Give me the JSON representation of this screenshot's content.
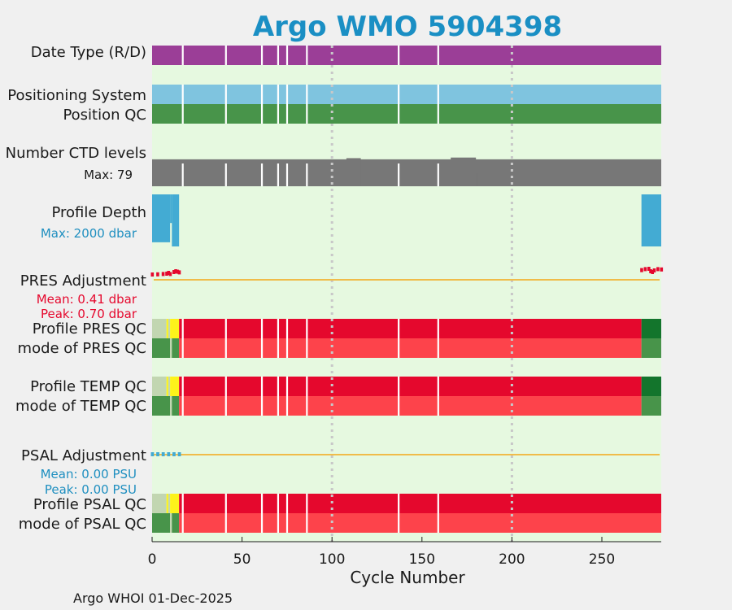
{
  "chart_data": {
    "type": "bar",
    "title": "Argo WMO 5904398",
    "xlabel": "Cycle Number",
    "xlim": [
      0,
      283
    ],
    "xticks": [
      0,
      50,
      100,
      150,
      200,
      250
    ],
    "grid_x": [
      100,
      200
    ],
    "footer": "Argo WHOI 01-Dec-2025",
    "colors": {
      "background": "#e6f9e0",
      "purple": "#9b3e97",
      "lightblue": "#7fc4df",
      "green": "#48944a",
      "gray": "#777777",
      "depth": "#43abd3",
      "red": "#e5082d",
      "lightred": "#fd434b",
      "darkgreen": "#13752c",
      "qcpale": "#c2d6b1",
      "yellow": "#fdf31b",
      "orange": "#f0bc4a",
      "pres_text": "#e5082d",
      "psal_text": "#1f8fc0"
    },
    "gaps": [
      17,
      41,
      61,
      70,
      75,
      86,
      137,
      159
    ],
    "labels": {
      "date_type": "Date Type (R/D)",
      "positioning": "Positioning System",
      "position_qc": "Position QC",
      "nlevels": "Number CTD levels",
      "nlevels_max": "Max: 79",
      "depth": "Profile Depth",
      "depth_max": "Max: 2000 dbar",
      "pres_adj": "PRES Adjustment",
      "pres_mean": "Mean: 0.41 dbar",
      "pres_peak": "Peak: 0.70 dbar",
      "pres_qc": "Profile PRES QC",
      "pres_mode": "mode of PRES QC",
      "temp_qc": "Profile TEMP QC",
      "temp_mode": "mode of TEMP QC",
      "psal_adj": "PSAL Adjustment",
      "psal_mean": "Mean: 0.00 PSU",
      "psal_peak": "Peak: 0.00 PSU",
      "psal_qc": "Profile PSAL QC",
      "psal_mode": "mode of PSAL QC"
    },
    "rows": {
      "date_type": [
        {
          "x0": 0,
          "x1": 283,
          "color": "purple"
        }
      ],
      "positioning": [
        {
          "x0": 0,
          "x1": 283,
          "color": "lightblue"
        }
      ],
      "position_qc": [
        {
          "x0": 0,
          "x1": 283,
          "color": "green"
        }
      ],
      "pres_qc": [
        {
          "x0": 0,
          "x1": 8,
          "color": "qcpale"
        },
        {
          "x0": 8,
          "x1": 9,
          "color": "yellow"
        },
        {
          "x0": 9,
          "x1": 10,
          "color": "qcpale"
        },
        {
          "x0": 10,
          "x1": 15,
          "color": "yellow"
        },
        {
          "x0": 15,
          "x1": 272,
          "color": "red"
        },
        {
          "x0": 272,
          "x1": 283,
          "color": "darkgreen"
        }
      ],
      "pres_mode": [
        {
          "x0": 0,
          "x1": 10,
          "color": "green"
        },
        {
          "x0": 10,
          "x1": 11,
          "color": "qcpale"
        },
        {
          "x0": 11,
          "x1": 15,
          "color": "green"
        },
        {
          "x0": 15,
          "x1": 272,
          "color": "lightred"
        },
        {
          "x0": 272,
          "x1": 283,
          "color": "green"
        }
      ],
      "temp_qc": [
        {
          "x0": 0,
          "x1": 8,
          "color": "qcpale"
        },
        {
          "x0": 8,
          "x1": 9,
          "color": "yellow"
        },
        {
          "x0": 9,
          "x1": 10,
          "color": "qcpale"
        },
        {
          "x0": 10,
          "x1": 15,
          "color": "yellow"
        },
        {
          "x0": 15,
          "x1": 272,
          "color": "red"
        },
        {
          "x0": 272,
          "x1": 283,
          "color": "darkgreen"
        }
      ],
      "temp_mode": [
        {
          "x0": 0,
          "x1": 10,
          "color": "green"
        },
        {
          "x0": 10,
          "x1": 11,
          "color": "qcpale"
        },
        {
          "x0": 11,
          "x1": 15,
          "color": "green"
        },
        {
          "x0": 15,
          "x1": 272,
          "color": "lightred"
        },
        {
          "x0": 272,
          "x1": 283,
          "color": "green"
        }
      ],
      "psal_qc": [
        {
          "x0": 0,
          "x1": 8,
          "color": "qcpale"
        },
        {
          "x0": 8,
          "x1": 9,
          "color": "yellow"
        },
        {
          "x0": 9,
          "x1": 10,
          "color": "qcpale"
        },
        {
          "x0": 10,
          "x1": 15,
          "color": "yellow"
        },
        {
          "x0": 15,
          "x1": 283,
          "color": "red"
        }
      ],
      "psal_mode": [
        {
          "x0": 0,
          "x1": 10,
          "color": "green"
        },
        {
          "x0": 10,
          "x1": 11,
          "color": "qcpale"
        },
        {
          "x0": 11,
          "x1": 15,
          "color": "green"
        },
        {
          "x0": 15,
          "x1": 283,
          "color": "lightred"
        }
      ]
    },
    "nlevels_extents": [
      {
        "x0": 0,
        "x1": 283,
        "fraction": 0.92
      },
      {
        "x0": 108,
        "x1": 116,
        "fraction": 0.96
      },
      {
        "x0": 151,
        "x1": 152,
        "fraction": 0.72
      },
      {
        "x0": 166,
        "x1": 180,
        "fraction": 0.98
      },
      {
        "x0": 180,
        "x1": 181,
        "fraction": 0.45
      }
    ],
    "depth_segments": [
      {
        "x0": 0,
        "x1": 10,
        "fraction": 0.92
      },
      {
        "x0": 10,
        "x1": 11,
        "fraction": 0.55
      },
      {
        "x0": 11,
        "x1": 15,
        "fraction": 1.0
      },
      {
        "x0": 272,
        "x1": 283,
        "fraction": 1.0
      }
    ],
    "pres_adj": {
      "baseline": 0,
      "points": [
        [
          0,
          0.35
        ],
        [
          3,
          0.36
        ],
        [
          6,
          0.38
        ],
        [
          8,
          0.4
        ],
        [
          9,
          0.45
        ],
        [
          10,
          0.38
        ],
        [
          12,
          0.5
        ],
        [
          13,
          0.55
        ],
        [
          14,
          0.52
        ],
        [
          15,
          0.48
        ],
        [
          272,
          0.62
        ],
        [
          274,
          0.68
        ],
        [
          276,
          0.7
        ],
        [
          277,
          0.55
        ],
        [
          278,
          0.5
        ],
        [
          279,
          0.6
        ],
        [
          281,
          0.68
        ],
        [
          283,
          0.66
        ]
      ]
    },
    "psal_adj": {
      "baseline": 0,
      "points": [
        [
          0,
          0.0
        ],
        [
          3,
          0.0
        ],
        [
          6,
          0.0
        ],
        [
          9,
          0.0
        ],
        [
          12,
          0.0
        ],
        [
          15,
          0.0
        ]
      ]
    }
  }
}
